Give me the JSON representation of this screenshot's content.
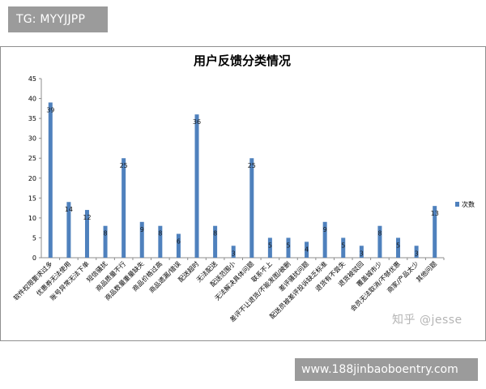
{
  "watermark_top": "TG: MYYJJPP",
  "watermark_bottom": "www.188jinbaoboentry.com",
  "watermark_zhihu": "知乎 @jesse",
  "colors": {
    "bar": "#4f81bd",
    "axis": "#8c8c8c",
    "grid": "#e2e2e2",
    "badge": "#9b9b9b"
  },
  "chart_data": {
    "type": "bar",
    "title": "用户反馈分类情况",
    "xlabel": "",
    "ylabel": "",
    "ylim": [
      0,
      45
    ],
    "yticks": [
      0,
      5,
      10,
      15,
      20,
      25,
      30,
      35,
      40,
      45
    ],
    "grid": false,
    "legend_position": "right",
    "categories": [
      "软件权限要求过多",
      "优惠券无法使用",
      "账号异常无法下单",
      "短信骚扰",
      "商品质量不行",
      "商品数量重量缺失",
      "商品价格过高",
      "商品遗漏/错误",
      "配送超时",
      "无法配送",
      "配送范围小",
      "无法解决具体问题",
      "联系不上",
      "差评不让退货/不能发图/被删",
      "差评骚扰问题",
      "配送员被差评投诉缺乏标准",
      "退货有不尝失",
      "退货被驳回",
      "覆盖城市少",
      "会员无法取消/不够优惠",
      "商家/产品太少",
      "其他问题"
    ],
    "series": [
      {
        "name": "次数",
        "values": [
          39,
          14,
          12,
          8,
          25,
          9,
          8,
          6,
          36,
          8,
          3,
          25,
          5,
          5,
          4,
          9,
          5,
          3,
          8,
          5,
          3,
          13
        ]
      }
    ]
  }
}
